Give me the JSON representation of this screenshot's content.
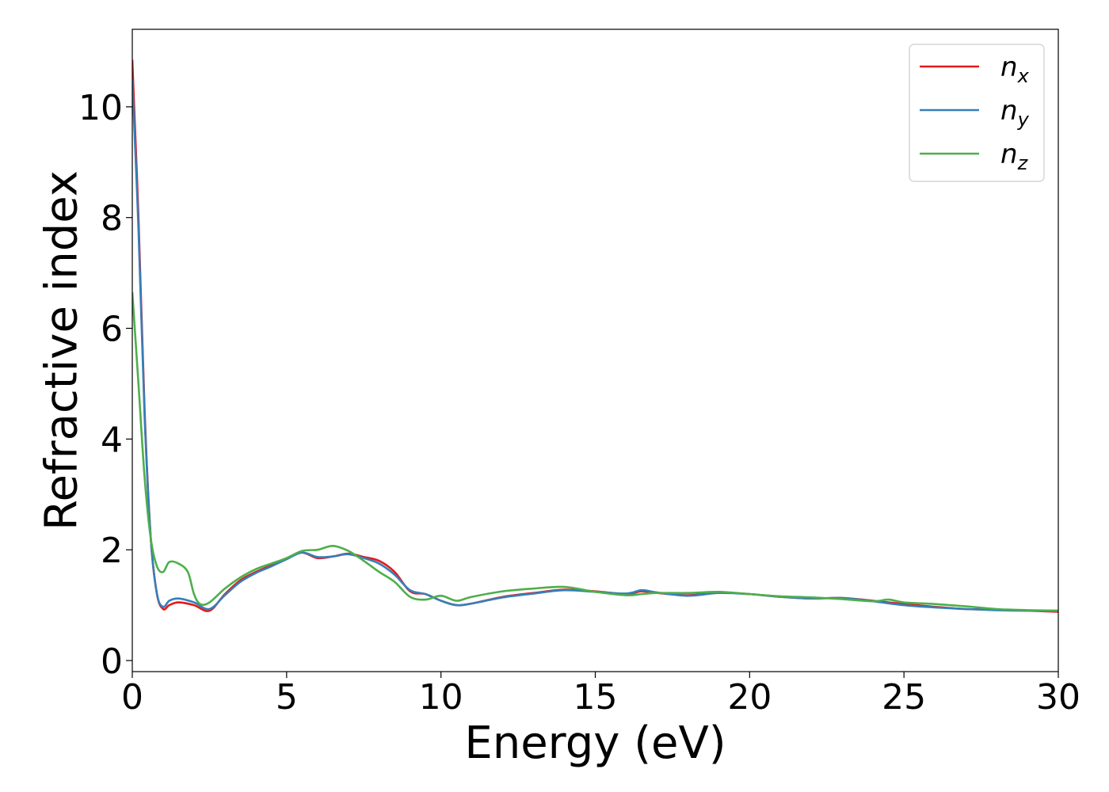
{
  "chart_data": {
    "type": "line",
    "xlabel": "Energy (eV)",
    "ylabel": "Refractive index",
    "xlim": [
      0,
      30
    ],
    "ylim": [
      -0.2,
      11.4
    ],
    "xticks": [
      0,
      5,
      10,
      15,
      20,
      25,
      30
    ],
    "yticks": [
      0,
      2,
      4,
      6,
      8,
      10
    ],
    "grid": false,
    "legend_position": "top-right",
    "series": [
      {
        "name": "n_x",
        "label_main": "n",
        "label_sub": "x",
        "color": "#e41a1c",
        "x": [
          0,
          0.2,
          0.4,
          0.6,
          0.8,
          1.0,
          1.2,
          1.5,
          2.0,
          2.5,
          3.0,
          3.5,
          4.0,
          4.5,
          5.0,
          5.5,
          6.0,
          6.5,
          7.0,
          7.5,
          8.0,
          8.5,
          9.0,
          9.5,
          10.0,
          10.5,
          11.0,
          12.0,
          13.0,
          14.0,
          15.0,
          16.0,
          16.5,
          17.0,
          18.0,
          19.0,
          20.0,
          21.0,
          22.0,
          23.0,
          24.0,
          25.0,
          26.0,
          27.0,
          28.0,
          29.0,
          30.0
        ],
        "y": [
          10.85,
          8.0,
          4.5,
          2.2,
          1.2,
          0.93,
          1.0,
          1.05,
          1.0,
          0.9,
          1.2,
          1.45,
          1.6,
          1.72,
          1.85,
          1.95,
          1.85,
          1.88,
          1.93,
          1.87,
          1.8,
          1.6,
          1.25,
          1.2,
          1.08,
          1.0,
          1.03,
          1.15,
          1.22,
          1.28,
          1.25,
          1.2,
          1.25,
          1.22,
          1.18,
          1.23,
          1.2,
          1.15,
          1.12,
          1.13,
          1.08,
          1.02,
          0.97,
          0.93,
          0.92,
          0.9,
          0.88
        ]
      },
      {
        "name": "n_y",
        "label_main": "n",
        "label_sub": "y",
        "color": "#377eb8",
        "x": [
          0,
          0.2,
          0.4,
          0.6,
          0.8,
          1.0,
          1.2,
          1.5,
          2.0,
          2.5,
          3.0,
          3.5,
          4.0,
          4.5,
          5.0,
          5.5,
          6.0,
          6.5,
          7.0,
          7.5,
          8.0,
          8.5,
          9.0,
          9.5,
          10.0,
          10.5,
          11.0,
          12.0,
          13.0,
          14.0,
          15.0,
          16.0,
          16.5,
          17.0,
          18.0,
          19.0,
          20.0,
          21.0,
          22.0,
          23.0,
          24.0,
          25.0,
          26.0,
          27.0,
          28.0,
          29.0,
          30.0
        ],
        "y": [
          10.5,
          7.8,
          4.4,
          2.2,
          1.2,
          0.97,
          1.08,
          1.12,
          1.05,
          0.93,
          1.18,
          1.42,
          1.58,
          1.7,
          1.83,
          1.95,
          1.87,
          1.88,
          1.92,
          1.85,
          1.75,
          1.55,
          1.27,
          1.2,
          1.08,
          1.0,
          1.03,
          1.14,
          1.21,
          1.27,
          1.24,
          1.21,
          1.27,
          1.23,
          1.17,
          1.22,
          1.2,
          1.15,
          1.12,
          1.13,
          1.07,
          1.0,
          0.96,
          0.93,
          0.91,
          0.9,
          0.9
        ]
      },
      {
        "name": "n_z",
        "label_main": "n",
        "label_sub": "z",
        "color": "#4daf4a",
        "x": [
          0,
          0.2,
          0.4,
          0.6,
          0.8,
          1.0,
          1.2,
          1.5,
          1.8,
          2.0,
          2.2,
          2.5,
          3.0,
          3.5,
          4.0,
          4.5,
          5.0,
          5.5,
          6.0,
          6.5,
          7.0,
          7.5,
          8.0,
          8.5,
          9.0,
          9.5,
          10.0,
          10.5,
          11.0,
          12.0,
          13.0,
          14.0,
          15.0,
          16.0,
          16.5,
          17.0,
          18.0,
          19.0,
          20.0,
          21.0,
          22.0,
          23.0,
          24.0,
          24.5,
          25.0,
          26.0,
          27.0,
          28.0,
          29.0,
          30.0
        ],
        "y": [
          6.65,
          5.0,
          3.3,
          2.2,
          1.7,
          1.6,
          1.78,
          1.75,
          1.6,
          1.2,
          1.02,
          1.05,
          1.3,
          1.5,
          1.65,
          1.75,
          1.85,
          1.98,
          2.0,
          2.07,
          1.98,
          1.8,
          1.6,
          1.42,
          1.15,
          1.1,
          1.17,
          1.08,
          1.15,
          1.25,
          1.3,
          1.33,
          1.24,
          1.18,
          1.2,
          1.22,
          1.22,
          1.24,
          1.2,
          1.16,
          1.14,
          1.11,
          1.07,
          1.1,
          1.05,
          1.02,
          0.98,
          0.93,
          0.91,
          0.9
        ]
      }
    ]
  }
}
